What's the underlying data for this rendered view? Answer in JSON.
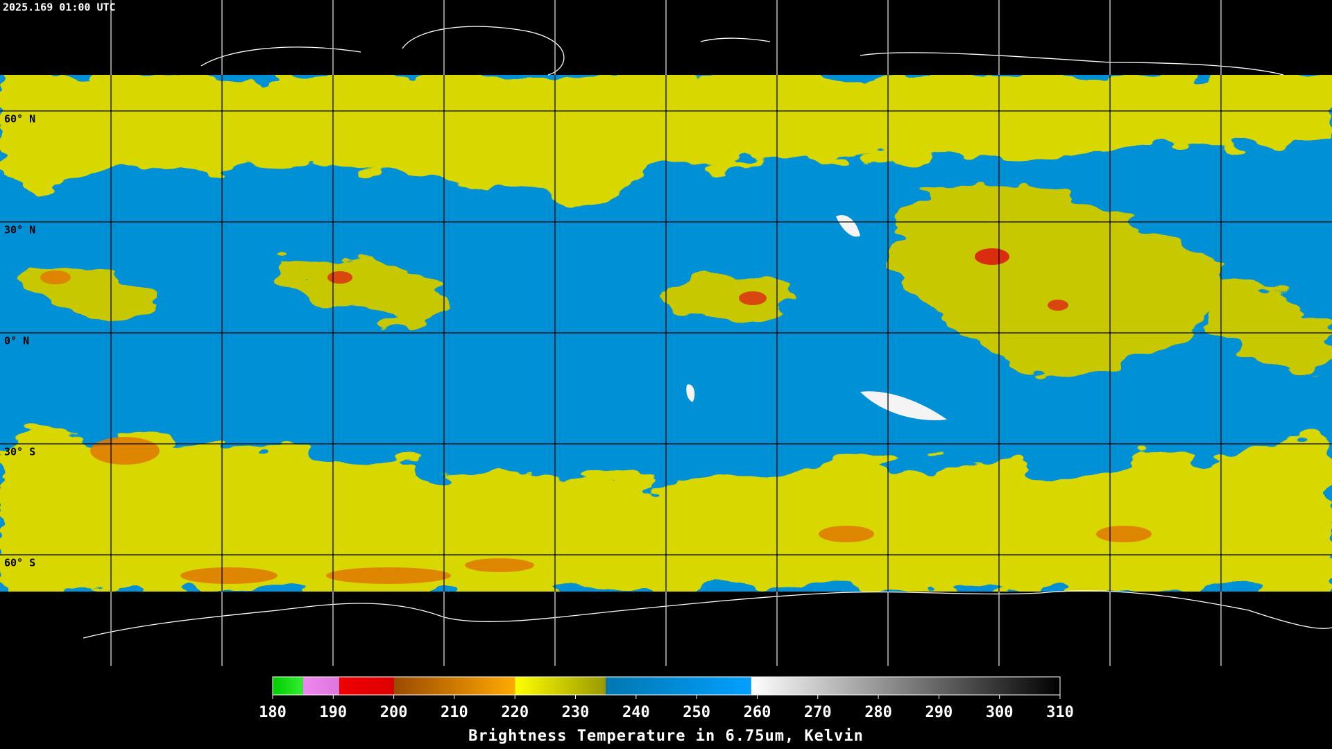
{
  "header": {
    "timestamp": "2025.169 01:00 UTC"
  },
  "map": {
    "lon_range": [
      -180,
      180
    ],
    "lat_range": [
      90,
      -90
    ],
    "meridians": [
      -150,
      -120,
      -90,
      -60,
      -30,
      0,
      30,
      60,
      90,
      120,
      150
    ],
    "parallels": [
      {
        "value": 60,
        "label": "60° N"
      },
      {
        "value": 30,
        "label": "30° N"
      },
      {
        "value": 0,
        "label": "0° N"
      },
      {
        "value": -30,
        "label": "30° S"
      },
      {
        "value": -60,
        "label": "60° S"
      }
    ]
  },
  "colorbar": {
    "range": [
      180,
      310
    ],
    "ticks": [
      180,
      190,
      200,
      210,
      220,
      230,
      240,
      250,
      260,
      270,
      280,
      290,
      300,
      310
    ],
    "title": "Brightness Temperature in 6.75um, Kelvin",
    "segments": [
      {
        "from": 180,
        "to": 185,
        "colors": [
          "#00cc00",
          "#33ee33"
        ]
      },
      {
        "from": 185,
        "to": 191,
        "colors": [
          "#ee88ee",
          "#dd77dd"
        ]
      },
      {
        "from": 191,
        "to": 200,
        "colors": [
          "#ee0000",
          "#dd0000"
        ]
      },
      {
        "from": 200,
        "to": 220,
        "colors": [
          "#9a4a00",
          "#ffaa00"
        ]
      },
      {
        "from": 220,
        "to": 235,
        "colors": [
          "#ffff00",
          "#999900"
        ]
      },
      {
        "from": 235,
        "to": 259,
        "colors": [
          "#0078b0",
          "#00a0ff"
        ]
      },
      {
        "from": 259,
        "to": 310,
        "colors": [
          "#ffffff",
          "#000000"
        ]
      }
    ]
  }
}
